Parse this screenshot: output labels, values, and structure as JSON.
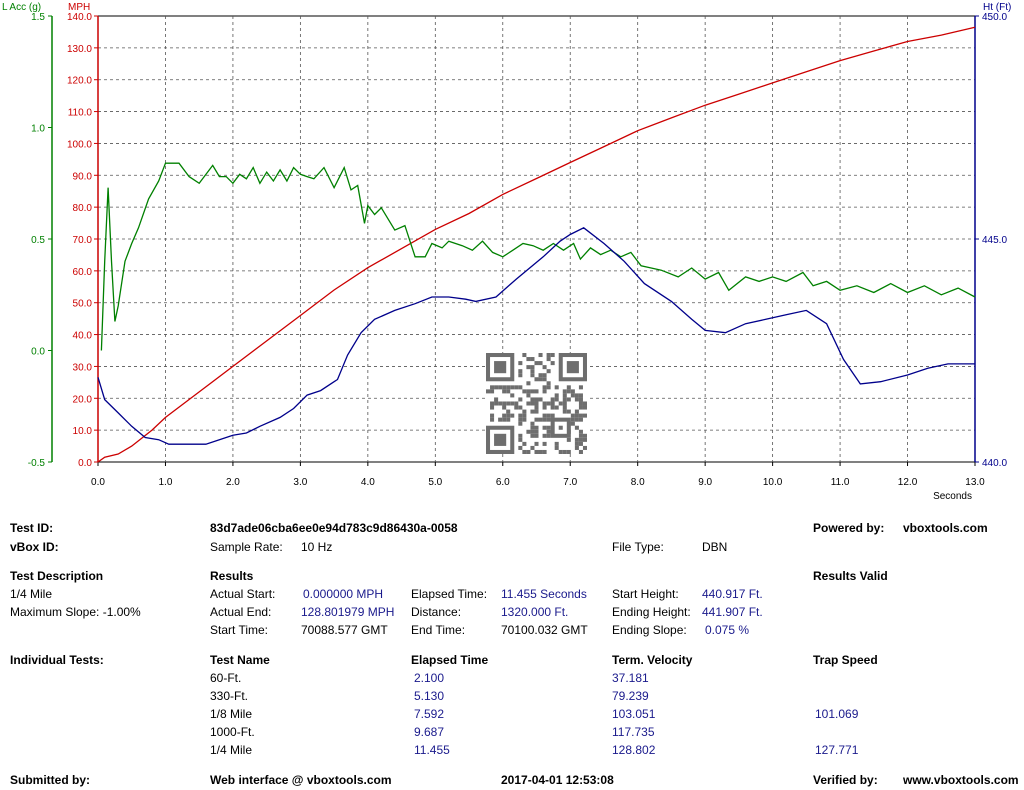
{
  "chart_data": {
    "type": "line",
    "x_unit_label": "Seconds",
    "xlim": [
      0,
      13
    ],
    "x_ticks": [
      "0.0",
      "1.0",
      "2.0",
      "3.0",
      "4.0",
      "5.0",
      "6.0",
      "7.0",
      "8.0",
      "9.0",
      "10.0",
      "11.0",
      "12.0",
      "13.0"
    ],
    "grid": true,
    "axes": {
      "mph": {
        "label": "MPH",
        "color": "#cc0000",
        "lim": [
          0,
          140
        ],
        "ticks": [
          "0.0",
          "10.0",
          "20.0",
          "30.0",
          "40.0",
          "50.0",
          "60.0",
          "70.0",
          "80.0",
          "90.0",
          "100.0",
          "110.0",
          "120.0",
          "130.0",
          "140.0"
        ]
      },
      "lacc": {
        "label": "L Acc (g)",
        "color": "#008000",
        "lim": [
          -0.5,
          1.5
        ],
        "ticks": [
          "-0.5",
          "0.0",
          "0.5",
          "1.0",
          "1.5"
        ]
      },
      "ht": {
        "label": "Ht (Ft)",
        "color": "#00008b",
        "lim": [
          440,
          450
        ],
        "ticks": [
          "440.0",
          "445.0",
          "450.0"
        ]
      }
    },
    "series": [
      {
        "axis": "mph",
        "color": "#cc0000",
        "points": [
          [
            0,
            0
          ],
          [
            0.1,
            1.5
          ],
          [
            0.3,
            2.5
          ],
          [
            0.5,
            5
          ],
          [
            0.8,
            10
          ],
          [
            1.0,
            14
          ],
          [
            1.5,
            22
          ],
          [
            2.0,
            30
          ],
          [
            2.5,
            38
          ],
          [
            3.0,
            46
          ],
          [
            3.5,
            54
          ],
          [
            4.0,
            61
          ],
          [
            4.5,
            67
          ],
          [
            5.0,
            73
          ],
          [
            5.5,
            78
          ],
          [
            6.0,
            84
          ],
          [
            6.5,
            89
          ],
          [
            7.0,
            94
          ],
          [
            7.5,
            99
          ],
          [
            8.0,
            104
          ],
          [
            8.5,
            108
          ],
          [
            9.0,
            112
          ],
          [
            9.5,
            115.5
          ],
          [
            10.0,
            119
          ],
          [
            10.5,
            122.5
          ],
          [
            11.0,
            126
          ],
          [
            11.5,
            129
          ],
          [
            12.0,
            132
          ],
          [
            12.5,
            134
          ],
          [
            13.0,
            136.5
          ]
        ]
      },
      {
        "axis": "lacc",
        "color": "#008000",
        "points": [
          [
            0.05,
            0
          ],
          [
            0.1,
            0.4
          ],
          [
            0.15,
            0.73
          ],
          [
            0.2,
            0.4
          ],
          [
            0.25,
            0.13
          ],
          [
            0.3,
            0.2
          ],
          [
            0.4,
            0.4
          ],
          [
            0.5,
            0.48
          ],
          [
            0.6,
            0.55
          ],
          [
            0.75,
            0.68
          ],
          [
            0.9,
            0.76
          ],
          [
            1.0,
            0.84
          ],
          [
            1.2,
            0.84
          ],
          [
            1.35,
            0.78
          ],
          [
            1.5,
            0.75
          ],
          [
            1.7,
            0.83
          ],
          [
            1.8,
            0.78
          ],
          [
            1.9,
            0.78
          ],
          [
            2.0,
            0.75
          ],
          [
            2.1,
            0.79
          ],
          [
            2.2,
            0.77
          ],
          [
            2.3,
            0.82
          ],
          [
            2.4,
            0.75
          ],
          [
            2.5,
            0.8
          ],
          [
            2.6,
            0.76
          ],
          [
            2.7,
            0.81
          ],
          [
            2.8,
            0.76
          ],
          [
            2.9,
            0.82
          ],
          [
            3.0,
            0.79
          ],
          [
            3.1,
            0.78
          ],
          [
            3.2,
            0.77
          ],
          [
            3.35,
            0.82
          ],
          [
            3.5,
            0.73
          ],
          [
            3.65,
            0.82
          ],
          [
            3.75,
            0.72
          ],
          [
            3.85,
            0.74
          ],
          [
            3.95,
            0.57
          ],
          [
            4.0,
            0.65
          ],
          [
            4.1,
            0.61
          ],
          [
            4.2,
            0.64
          ],
          [
            4.4,
            0.54
          ],
          [
            4.55,
            0.56
          ],
          [
            4.7,
            0.42
          ],
          [
            4.85,
            0.42
          ],
          [
            4.95,
            0.48
          ],
          [
            5.1,
            0.46
          ],
          [
            5.2,
            0.49
          ],
          [
            5.4,
            0.47
          ],
          [
            5.55,
            0.45
          ],
          [
            5.7,
            0.49
          ],
          [
            5.85,
            0.44
          ],
          [
            6.0,
            0.42
          ],
          [
            6.15,
            0.45
          ],
          [
            6.3,
            0.48
          ],
          [
            6.45,
            0.47
          ],
          [
            6.6,
            0.45
          ],
          [
            6.75,
            0.48
          ],
          [
            6.9,
            0.45
          ],
          [
            7.05,
            0.48
          ],
          [
            7.15,
            0.41
          ],
          [
            7.3,
            0.46
          ],
          [
            7.45,
            0.43
          ],
          [
            7.6,
            0.45
          ],
          [
            7.75,
            0.42
          ],
          [
            7.9,
            0.44
          ],
          [
            8.05,
            0.38
          ],
          [
            8.2,
            0.37
          ],
          [
            8.35,
            0.36
          ],
          [
            8.6,
            0.33
          ],
          [
            8.8,
            0.37
          ],
          [
            9.0,
            0.32
          ],
          [
            9.2,
            0.35
          ],
          [
            9.35,
            0.27
          ],
          [
            9.6,
            0.33
          ],
          [
            9.8,
            0.31
          ],
          [
            10.0,
            0.33
          ],
          [
            10.2,
            0.31
          ],
          [
            10.45,
            0.35
          ],
          [
            10.6,
            0.29
          ],
          [
            10.8,
            0.31
          ],
          [
            11.0,
            0.27
          ],
          [
            11.25,
            0.29
          ],
          [
            11.5,
            0.26
          ],
          [
            11.75,
            0.3
          ],
          [
            12.0,
            0.26
          ],
          [
            12.25,
            0.29
          ],
          [
            12.5,
            0.25
          ],
          [
            12.75,
            0.28
          ],
          [
            13.0,
            0.24
          ]
        ]
      },
      {
        "axis": "ht",
        "color": "#00008b",
        "points": [
          [
            0.0,
            441.9
          ],
          [
            0.1,
            441.4
          ],
          [
            0.3,
            441.1
          ],
          [
            0.5,
            440.8
          ],
          [
            0.7,
            440.55
          ],
          [
            0.9,
            440.5
          ],
          [
            1.05,
            440.4
          ],
          [
            1.2,
            440.4
          ],
          [
            1.6,
            440.4
          ],
          [
            1.8,
            440.5
          ],
          [
            2.0,
            440.6
          ],
          [
            2.2,
            440.65
          ],
          [
            2.4,
            440.8
          ],
          [
            2.7,
            441.0
          ],
          [
            2.9,
            441.2
          ],
          [
            3.1,
            441.5
          ],
          [
            3.3,
            441.6
          ],
          [
            3.5,
            441.8
          ],
          [
            3.55,
            441.85
          ],
          [
            3.7,
            442.4
          ],
          [
            3.9,
            442.9
          ],
          [
            4.1,
            443.2
          ],
          [
            4.4,
            443.4
          ],
          [
            4.7,
            443.55
          ],
          [
            4.95,
            443.7
          ],
          [
            5.2,
            443.7
          ],
          [
            5.45,
            443.65
          ],
          [
            5.6,
            443.6
          ],
          [
            5.9,
            443.7
          ],
          [
            6.2,
            444.1
          ],
          [
            6.6,
            444.6
          ],
          [
            6.85,
            444.95
          ],
          [
            7.0,
            445.1
          ],
          [
            7.2,
            445.25
          ],
          [
            7.5,
            444.9
          ],
          [
            7.8,
            444.5
          ],
          [
            8.1,
            444.0
          ],
          [
            8.5,
            443.6
          ],
          [
            8.8,
            443.2
          ],
          [
            9.0,
            442.95
          ],
          [
            9.3,
            442.9
          ],
          [
            9.6,
            443.1
          ],
          [
            9.9,
            443.2
          ],
          [
            10.2,
            443.3
          ],
          [
            10.5,
            443.4
          ],
          [
            10.8,
            443.1
          ],
          [
            11.05,
            442.3
          ],
          [
            11.3,
            441.75
          ],
          [
            11.6,
            441.8
          ],
          [
            12.0,
            441.95
          ],
          [
            12.3,
            442.1
          ],
          [
            12.6,
            442.2
          ],
          [
            12.9,
            442.2
          ],
          [
            13.0,
            442.2
          ]
        ]
      }
    ]
  },
  "report": {
    "test_id_label": "Test ID:",
    "test_id_value": "83d7ade06cba6ee0e94d783c9d86430a-0058",
    "powered_by_label": "Powered by:",
    "powered_by_value": "vboxtools.com",
    "vbox_id_label": "vBox ID:",
    "sample_rate_label": "Sample Rate:",
    "sample_rate_value": "10 Hz",
    "file_type_label": "File Type:",
    "file_type_value": "DBN",
    "test_description_label": "Test Description",
    "results_label": "Results",
    "results_valid_label": "Results Valid",
    "description_line1": "1/4 Mile",
    "description_line2": "Maximum Slope:  -1.00%",
    "actual_start_label": "Actual Start:",
    "actual_start_value": "0.000000 MPH",
    "elapsed_time_label": "Elapsed Time:",
    "elapsed_time_value": "11.455 Seconds",
    "start_height_label": "Start Height:",
    "start_height_value": "440.917 Ft.",
    "actual_end_label": "Actual End:",
    "actual_end_value": "128.801979 MPH",
    "distance_label": "Distance:",
    "distance_value": "1320.000 Ft.",
    "ending_height_label": "Ending Height:",
    "ending_height_value": "441.907 Ft.",
    "start_time_label": "Start Time:",
    "start_time_value": "70088.577 GMT",
    "end_time_label": "End Time:",
    "end_time_value": "70100.032 GMT",
    "ending_slope_label": "Ending Slope:",
    "ending_slope_value": "0.075 %",
    "individual_tests_label": "Individual Tests:",
    "col_test_name": "Test Name",
    "col_elapsed": "Elapsed Time",
    "col_velocity": "Term. Velocity",
    "col_trap": "Trap Speed",
    "tests": [
      {
        "name": "60-Ft.",
        "elapsed": "2.100",
        "velocity": "37.181",
        "trap": ""
      },
      {
        "name": "330-Ft.",
        "elapsed": "5.130",
        "velocity": "79.239",
        "trap": ""
      },
      {
        "name": "1/8 Mile",
        "elapsed": "7.592",
        "velocity": "103.051",
        "trap": "101.069"
      },
      {
        "name": "1000-Ft.",
        "elapsed": "9.687",
        "velocity": "117.735",
        "trap": ""
      },
      {
        "name": "1/4 Mile",
        "elapsed": "11.455",
        "velocity": "128.802",
        "trap": "127.771"
      }
    ],
    "submitted_by_label": "Submitted by:",
    "web_interface_value": "Web interface @ vboxtools.com",
    "timestamp_value": "2017-04-01 12:53:08",
    "verified_by_label": "Verified by:",
    "verified_by_value": "www.vboxtools.com"
  }
}
